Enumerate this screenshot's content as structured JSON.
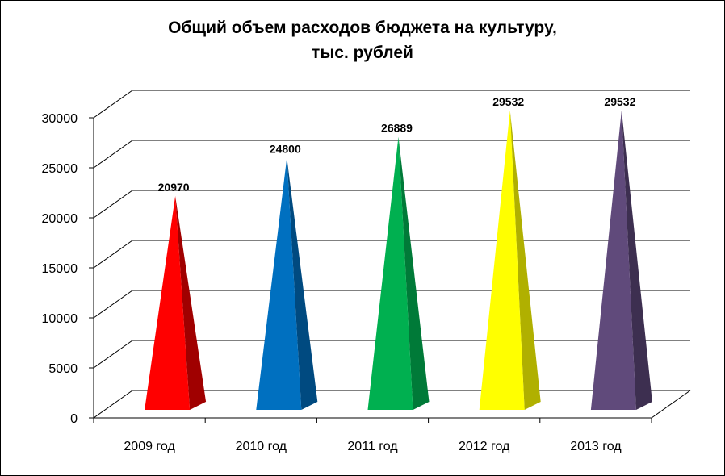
{
  "chart_data": {
    "type": "bar",
    "title_lines": [
      "Общий объем расходов бюджета на культуру,",
      "тыс. рублей"
    ],
    "categories": [
      "2009 год",
      "2010 год",
      "2011 год",
      "2012 год",
      "2013 год"
    ],
    "values": [
      20970,
      24800,
      26889,
      29532,
      29532
    ],
    "data_labels": [
      "20970",
      "24800",
      "26889",
      "29532",
      "29532"
    ],
    "colors": [
      "#ff0000",
      "#0070c0",
      "#00b050",
      "#ffff00",
      "#604a7b"
    ],
    "shade_colors": [
      "#a00000",
      "#004a80",
      "#007a38",
      "#b0b000",
      "#3d2f50"
    ],
    "yticks": [
      0,
      5000,
      10000,
      15000,
      20000,
      25000,
      30000
    ],
    "ytick_labels": [
      "0",
      "5000",
      "10000",
      "15000",
      "20000",
      "25000",
      "30000"
    ],
    "ylim": [
      0,
      30000
    ],
    "grid": true,
    "style": "3d-pyramid",
    "xlabel": "",
    "ylabel": ""
  }
}
